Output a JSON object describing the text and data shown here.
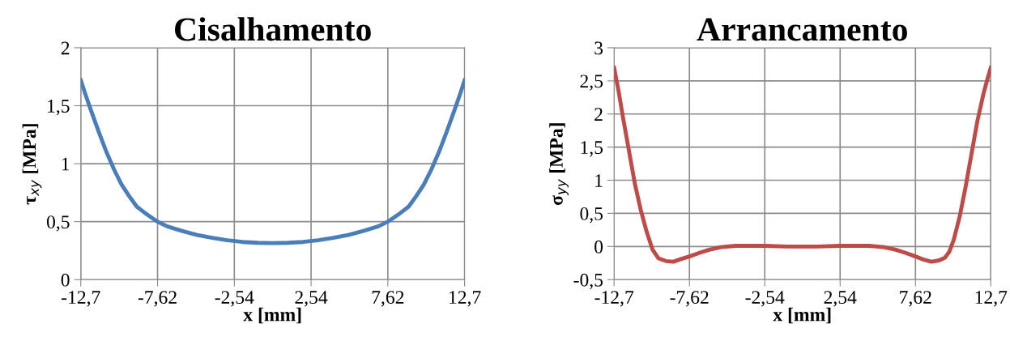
{
  "chart_data": [
    {
      "type": "line",
      "title": "Cisalhamento",
      "xlabel": "x [mm]",
      "ylabel": "τ$_{xy}$ [MPa]",
      "grid": true,
      "legend": false,
      "marker": "none",
      "line_style": "solid",
      "xlim": [
        -12.7,
        12.7
      ],
      "ylim": [
        0,
        2
      ],
      "xticks": [
        {
          "value": -12.7,
          "label": "-12,7"
        },
        {
          "value": -7.62,
          "label": "-7,62"
        },
        {
          "value": -2.54,
          "label": "-2,54"
        },
        {
          "value": 2.54,
          "label": "2,54"
        },
        {
          "value": 7.62,
          "label": "7,62"
        },
        {
          "value": 12.7,
          "label": "12,7"
        }
      ],
      "yticks": [
        0,
        {
          "value": 0.5,
          "label": "0,5"
        },
        1,
        {
          "value": 1.5,
          "label": "1,5"
        },
        2
      ],
      "series": [
        {
          "color": "#4a7ebb",
          "x": [
            -12.7,
            -12.4,
            -12,
            -11.5,
            -11,
            -10.5,
            -10,
            -9.5,
            -9,
            -8.3,
            -7.62,
            -7,
            -6,
            -5,
            -4,
            -3,
            -2,
            -1,
            0,
            1,
            2,
            3,
            4,
            5,
            6,
            7,
            7.62,
            8.3,
            9,
            9.5,
            10,
            10.5,
            11,
            11.5,
            12,
            12.4,
            12.7
          ],
          "values": [
            1.72,
            1.6,
            1.45,
            1.27,
            1.1,
            0.95,
            0.82,
            0.72,
            0.63,
            0.56,
            0.5,
            0.46,
            0.42,
            0.385,
            0.36,
            0.34,
            0.325,
            0.318,
            0.315,
            0.318,
            0.325,
            0.34,
            0.36,
            0.385,
            0.42,
            0.46,
            0.5,
            0.56,
            0.63,
            0.72,
            0.82,
            0.95,
            1.1,
            1.27,
            1.45,
            1.6,
            1.72
          ]
        }
      ]
    },
    {
      "type": "line",
      "title": "Arrancamento",
      "xlabel": "x [mm]",
      "ylabel": "σ$_{yy}$ [MPa]",
      "grid": true,
      "legend": false,
      "marker": "none",
      "line_style": "solid",
      "xlim": [
        -12.7,
        12.7
      ],
      "ylim": [
        -0.5,
        3
      ],
      "xticks": [
        {
          "value": -12.7,
          "label": "-12,7"
        },
        {
          "value": -7.62,
          "label": "-7,62"
        },
        {
          "value": -2.54,
          "label": "-2,54"
        },
        {
          "value": 2.54,
          "label": "2,54"
        },
        {
          "value": 7.62,
          "label": "7,62"
        },
        {
          "value": 12.7,
          "label": "12,7"
        }
      ],
      "yticks": [
        {
          "value": -0.5,
          "label": "-0,5"
        },
        0,
        {
          "value": 0.5,
          "label": "0,5"
        },
        1,
        {
          "value": 1.5,
          "label": "1,5"
        },
        2,
        {
          "value": 2.5,
          "label": "2,5"
        },
        3
      ],
      "series": [
        {
          "color": "#be4b48",
          "x": [
            -12.7,
            -12.4,
            -12.1,
            -11.7,
            -11.3,
            -10.9,
            -10.5,
            -10.1,
            -9.7,
            -9.2,
            -8.7,
            -8.2,
            -7.62,
            -7,
            -6.3,
            -5.5,
            -4.5,
            -3.5,
            -2.54,
            -1,
            0,
            1,
            2.54,
            3.5,
            4.5,
            5.5,
            6.3,
            7,
            7.62,
            8.2,
            8.7,
            9.2,
            9.6,
            9.9,
            10.2,
            10.6,
            11,
            11.4,
            11.8,
            12.2,
            12.5,
            12.7
          ],
          "values": [
            2.7,
            2.35,
            1.95,
            1.45,
            0.95,
            0.55,
            0.22,
            -0.05,
            -0.18,
            -0.22,
            -0.23,
            -0.19,
            -0.15,
            -0.1,
            -0.05,
            -0.01,
            0.01,
            0.01,
            0.01,
            0,
            0,
            0,
            0.01,
            0.01,
            0.01,
            -0.01,
            -0.05,
            -0.1,
            -0.15,
            -0.2,
            -0.23,
            -0.21,
            -0.17,
            -0.08,
            0.1,
            0.45,
            0.9,
            1.4,
            1.9,
            2.3,
            2.55,
            2.7
          ]
        }
      ]
    }
  ]
}
